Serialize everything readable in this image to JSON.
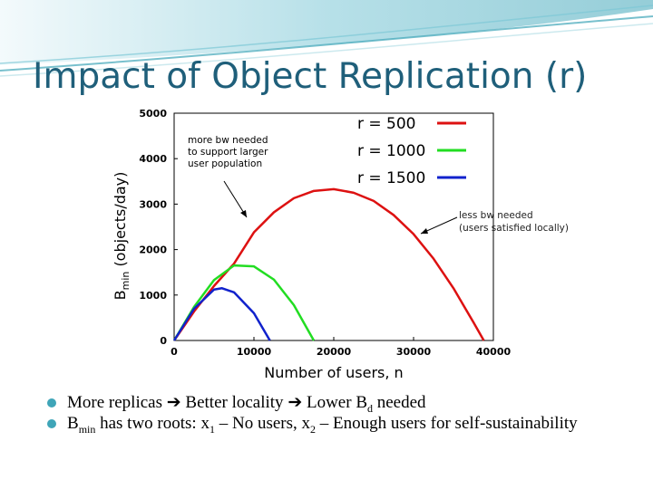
{
  "slide": {
    "title": "Impact of Object Replication (r)",
    "accent_color": "#3fa5b8",
    "title_color": "#1f5f7a"
  },
  "bullets": [
    {
      "parts": [
        "More replicas",
        "Better locality",
        "Lower B",
        "d",
        " needed"
      ],
      "arrow_icon": "right-arrow-icon"
    },
    {
      "parts": [
        "B",
        "min",
        " has two roots: x",
        "1",
        " – No users, x",
        "2",
        " – Enough users for self-sustainability"
      ]
    }
  ],
  "chart_data": {
    "type": "line",
    "x": [
      0,
      2500,
      5000,
      7500,
      10000,
      12500,
      15000,
      17500,
      20000,
      22500,
      25000,
      27500,
      30000,
      32500,
      35000,
      37500,
      40000
    ],
    "series": [
      {
        "name": "r = 500",
        "color": "#dd1111",
        "points": [
          [
            0,
            0
          ],
          [
            2500,
            640
          ],
          [
            5000,
            1200
          ],
          [
            7500,
            1690
          ],
          [
            10000,
            2380
          ],
          [
            12500,
            2820
          ],
          [
            15000,
            3130
          ],
          [
            17500,
            3290
          ],
          [
            20000,
            3330
          ],
          [
            22500,
            3250
          ],
          [
            25000,
            3070
          ],
          [
            27500,
            2760
          ],
          [
            30000,
            2340
          ],
          [
            32500,
            1800
          ],
          [
            35000,
            1150
          ],
          [
            37500,
            400
          ],
          [
            38800,
            0
          ]
        ]
      },
      {
        "name": "r = 1000",
        "color": "#22dd22",
        "points": [
          [
            0,
            0
          ],
          [
            2500,
            740
          ],
          [
            5000,
            1330
          ],
          [
            7500,
            1650
          ],
          [
            10000,
            1630
          ],
          [
            12500,
            1340
          ],
          [
            15000,
            780
          ],
          [
            17500,
            0
          ]
        ]
      },
      {
        "name": "r = 1500",
        "color": "#1122cc",
        "points": [
          [
            0,
            0
          ],
          [
            2500,
            700
          ],
          [
            5000,
            1120
          ],
          [
            6000,
            1150
          ],
          [
            7500,
            1060
          ],
          [
            10000,
            600
          ],
          [
            12000,
            0
          ]
        ]
      }
    ],
    "xlabel": "Number of users, n",
    "ylabel_main": "B",
    "ylabel_sub": "min",
    "ylabel_rest": " (objects/day)",
    "xlim": [
      0,
      40000
    ],
    "ylim": [
      0,
      5000
    ],
    "xticks": [
      "0",
      "10000",
      "20000",
      "30000",
      "40000"
    ],
    "yticks": [
      "0",
      "1000",
      "2000",
      "3000",
      "4000",
      "5000"
    ],
    "legend_position": "top-right",
    "annotations": [
      {
        "lines": [
          "more bw needed",
          "to support larger",
          "user population"
        ]
      },
      {
        "lines": [
          "less bw needed",
          "(users satisfied locally)"
        ]
      }
    ],
    "grid": false
  }
}
